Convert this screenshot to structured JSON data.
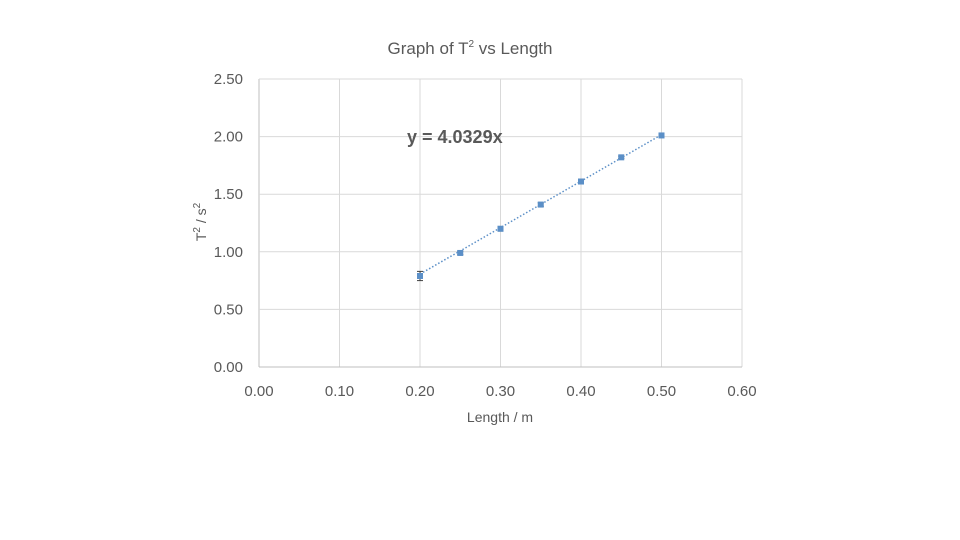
{
  "chart_data": {
    "type": "scatter",
    "title": {
      "base": "Graph of T",
      "sup": "2",
      "rest": " vs Length"
    },
    "xlabel": "Length / m",
    "ylabel": {
      "base": "T",
      "sup1": "2",
      "mid": " / s",
      "sup2": "2"
    },
    "xlim": [
      0,
      0.6
    ],
    "ylim": [
      0,
      2.5
    ],
    "x_ticks": [
      "0.00",
      "0.10",
      "0.20",
      "0.30",
      "0.40",
      "0.50",
      "0.60"
    ],
    "y_ticks": [
      "0.00",
      "0.50",
      "1.00",
      "1.50",
      "2.00",
      "2.50"
    ],
    "grid": true,
    "series": [
      {
        "x": [
          0.2,
          0.25,
          0.3,
          0.35,
          0.4,
          0.45,
          0.5
        ],
        "y": [
          0.79,
          0.99,
          1.2,
          1.41,
          1.61,
          1.82,
          2.01
        ],
        "y_err": [
          0.04,
          0.015,
          0.02,
          0.015,
          0.02,
          0.01,
          0.01
        ],
        "color": "#5b8fc7"
      }
    ],
    "trendline": {
      "slope": 4.0329,
      "x_range": [
        0.2,
        0.5
      ],
      "style": "dotted",
      "color": "#5b8fc7",
      "equation": "y = 4.0329x"
    }
  }
}
